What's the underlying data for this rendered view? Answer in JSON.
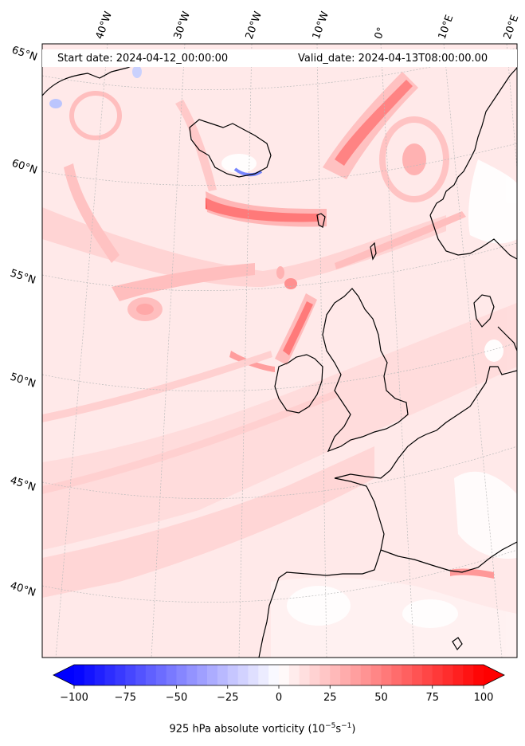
{
  "map": {
    "start_date": "Start date: 2024-04-12_00:00:00",
    "valid_date": "Valid_date: 2024-04-13T08:00:00.00",
    "lon_labels": [
      "40°W",
      "30°W",
      "20°W",
      "10°W",
      "0°",
      "10°E",
      "20°E"
    ],
    "lat_labels": [
      "65°N",
      "60°N",
      "55°N",
      "50°N",
      "45°N",
      "40°N"
    ],
    "projection": "conic",
    "field_colors": {
      "low": "#0000ff",
      "mid": "#ffffff",
      "high": "#ff0000"
    }
  },
  "colorbar": {
    "label_prefix": "925 hPa absolute vorticity (10",
    "label_exp1": "−5",
    "label_mid": "s",
    "label_exp2": "−1",
    "label_suffix": ")",
    "ticks": [
      "−100",
      "−75",
      "−50",
      "−25",
      "0",
      "25",
      "50",
      "75",
      "100"
    ],
    "min": -100,
    "max": 100,
    "levels": 40,
    "cmap": "bwr"
  }
}
